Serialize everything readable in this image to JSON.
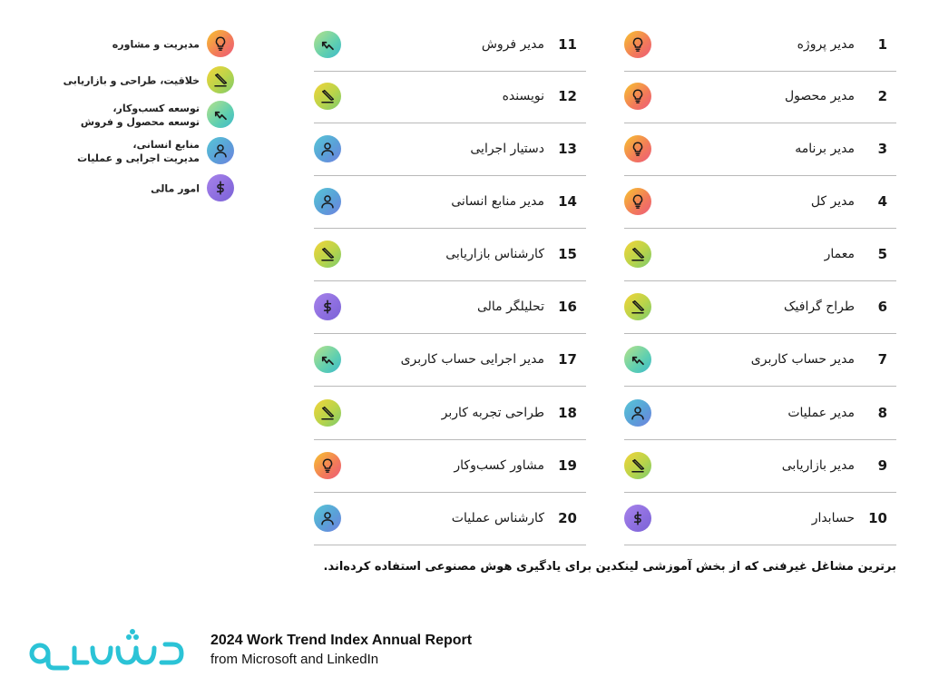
{
  "legend": [
    {
      "icon": "lightbulb-icon",
      "gradient": "g-bulb",
      "label": "مدیریت و مشاوره"
    },
    {
      "icon": "pencil-icon",
      "gradient": "g-pencil",
      "label": "خلاقیت، طراحی و بازاریابی"
    },
    {
      "icon": "trend-arrow-icon",
      "gradient": "g-trend",
      "label": "توسعه کسب‌وکار،\nتوسعه محصول و فروش"
    },
    {
      "icon": "person-icon",
      "gradient": "g-person",
      "label": "منابع انسانی،\nمدیریت اجرایی و عملیات"
    },
    {
      "icon": "money-icon",
      "gradient": "g-money",
      "label": "امور مالی"
    }
  ],
  "roles_right": [
    {
      "num": "1",
      "title": "مدیر پروژه",
      "icon": "lightbulb-icon"
    },
    {
      "num": "2",
      "title": "مدیر محصول",
      "icon": "lightbulb-icon"
    },
    {
      "num": "3",
      "title": "مدیر برنامه",
      "icon": "lightbulb-icon"
    },
    {
      "num": "4",
      "title": "مدیر کل",
      "icon": "lightbulb-icon"
    },
    {
      "num": "5",
      "title": "معمار",
      "icon": "pencil-icon"
    },
    {
      "num": "6",
      "title": "طراح گرافیک",
      "icon": "pencil-icon"
    },
    {
      "num": "7",
      "title": "مدیر حساب کاربری",
      "icon": "trend-arrow-icon"
    },
    {
      "num": "8",
      "title": "مدیر عملیات",
      "icon": "person-icon"
    },
    {
      "num": "9",
      "title": "مدیر بازاریابی",
      "icon": "pencil-icon"
    },
    {
      "num": "10",
      "title": "حسابدار",
      "icon": "money-icon"
    }
  ],
  "roles_left": [
    {
      "num": "11",
      "title": "مدیر فروش",
      "icon": "trend-arrow-icon"
    },
    {
      "num": "12",
      "title": "نویسنده",
      "icon": "pencil-icon"
    },
    {
      "num": "13",
      "title": "دستیار اجرایی",
      "icon": "person-icon"
    },
    {
      "num": "14",
      "title": "مدیر منابع انسانی",
      "icon": "person-icon"
    },
    {
      "num": "15",
      "title": "کارشناس بازاریابی",
      "icon": "pencil-icon"
    },
    {
      "num": "16",
      "title": "تحلیلگر مالی",
      "icon": "money-icon"
    },
    {
      "num": "17",
      "title": "مدیر اجرایی حساب کاربری",
      "icon": "trend-arrow-icon"
    },
    {
      "num": "18",
      "title": "طراحی تجربه کاربر",
      "icon": "pencil-icon"
    },
    {
      "num": "19",
      "title": "مشاور کسب‌وکار",
      "icon": "lightbulb-icon"
    },
    {
      "num": "20",
      "title": "کارشناس عملیات",
      "icon": "person-icon"
    }
  ],
  "caption": "برترین مشاغل غیرفنی که از بخش آموزشی لینکدین برای یادگیری هوش مصنوعی استفاده کرده‌اند.",
  "logo_text": "تموشیرو",
  "report_title": "2024 Work Trend Index Annual Report",
  "report_subtitle": "from Microsoft and LinkedIn",
  "colors": {
    "logo": "#2bc3d6",
    "divider": "#b9b9b9"
  }
}
